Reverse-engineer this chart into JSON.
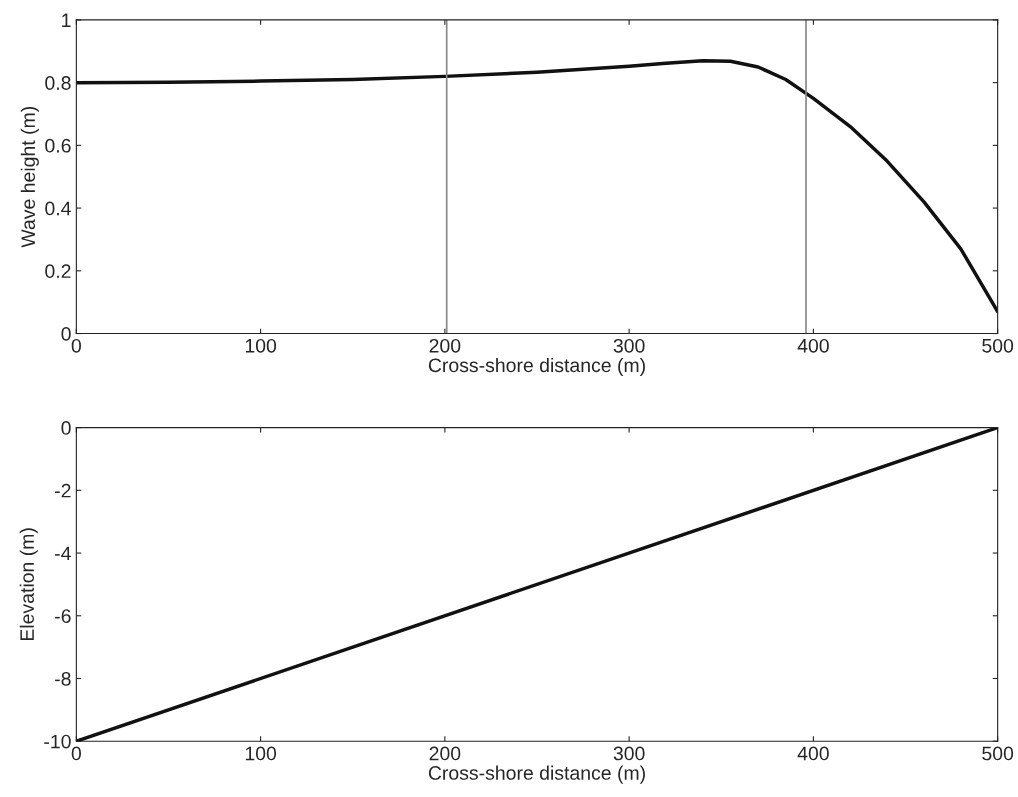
{
  "chart_data": [
    {
      "type": "line",
      "xlabel": "Cross-shore distance (m)",
      "ylabel": "Wave height (m)",
      "xlim": [
        0,
        500
      ],
      "ylim": [
        0,
        1
      ],
      "xticks": [
        0,
        100,
        200,
        300,
        400,
        500
      ],
      "yticks": [
        0,
        0.2,
        0.4,
        0.6,
        0.8,
        1
      ],
      "grid": false,
      "legend": false,
      "series": [
        {
          "color": "#111111",
          "x": [
            0,
            50,
            100,
            150,
            200,
            250,
            300,
            320,
            340,
            355,
            370,
            385,
            400,
            420,
            440,
            460,
            480,
            500
          ],
          "values": [
            0.8,
            0.801,
            0.805,
            0.81,
            0.82,
            0.833,
            0.852,
            0.862,
            0.87,
            0.868,
            0.85,
            0.81,
            0.75,
            0.66,
            0.55,
            0.42,
            0.27,
            0.07
          ]
        }
      ],
      "ref_lines": [
        {
          "axis": "x",
          "value": 201,
          "color": "#888888"
        },
        {
          "axis": "x",
          "value": 396,
          "color": "#888888"
        }
      ]
    },
    {
      "type": "line",
      "xlabel": "Cross-shore distance (m)",
      "ylabel": "Elevation (m)",
      "xlim": [
        0,
        500
      ],
      "ylim": [
        -10,
        0
      ],
      "xticks": [
        0,
        100,
        200,
        300,
        400,
        500
      ],
      "yticks": [
        -10,
        -8,
        -6,
        -4,
        -2,
        0
      ],
      "grid": false,
      "legend": false,
      "series": [
        {
          "color": "#111111",
          "x": [
            0,
            500
          ],
          "values": [
            -10,
            0
          ]
        }
      ]
    }
  ]
}
